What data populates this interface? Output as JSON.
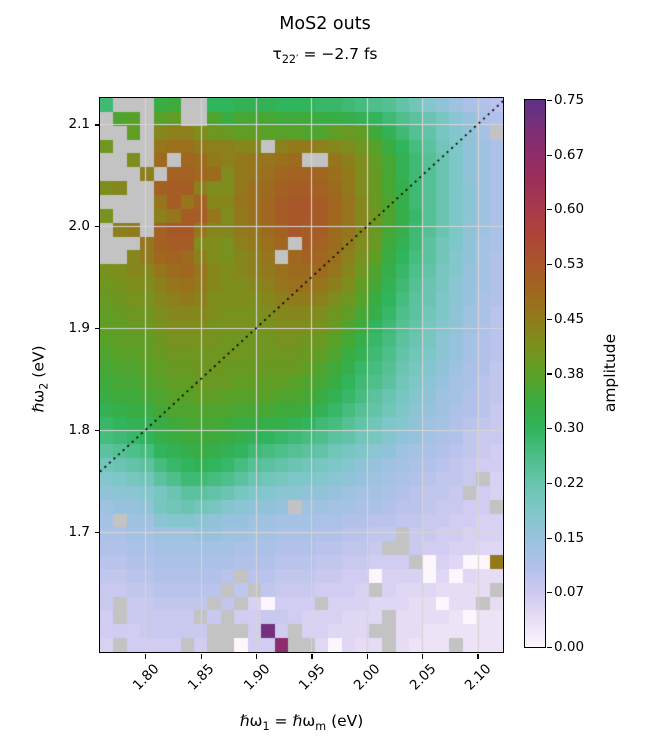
{
  "title": "MoS2 outs",
  "subtitle": {
    "tau": "τ",
    "sub": "22′",
    "rest": " = −2.7 fs"
  },
  "chart_data": {
    "type": "heatmap",
    "title": "MoS2 outs",
    "subtitle": "tau_22' = -2.7 fs",
    "xlabel_parts": {
      "main": "ℏω",
      "sub1": "1",
      "eq": " = ",
      "main2": "ℏω",
      "sub2": "m",
      "unit": " (eV)"
    },
    "ylabel_parts": {
      "main": "ℏω",
      "sub": "2",
      "unit": " (eV)"
    },
    "x_range": [
      1.759,
      2.123
    ],
    "y_range": [
      1.582,
      2.126
    ],
    "x_tick_labels": [
      "1.80",
      "1.85",
      "1.90",
      "1.95",
      "2.00",
      "2.05",
      "2.10"
    ],
    "x_tick_values": [
      1.8,
      1.85,
      1.9,
      1.95,
      2.0,
      2.05,
      2.1
    ],
    "y_tick_labels": [
      "2.1",
      "2.0",
      "1.9",
      "1.8",
      "1.7"
    ],
    "y_tick_values": [
      2.1,
      2.0,
      1.9,
      1.8,
      1.7
    ],
    "grid": true,
    "grid_color": "#d6d6d6",
    "diagonal_line": {
      "style": "dotted",
      "color": "#000000",
      "equation": "hw2 = hw1"
    },
    "nan_color": "#c3c3c3",
    "grid_cols": 30,
    "grid_rows": 40,
    "values_note": "amplitude x100 per cell, row 0 = top (hw2 = 2.12 eV), col 0 = left (hw1 = 1.76 eV), -1 = missing (gray)",
    "values": [
      [
        28,
        -1,
        -1,
        -1,
        33,
        34,
        -1,
        -1,
        30,
        30,
        31,
        31,
        31,
        30,
        30,
        30,
        29,
        29,
        28,
        27,
        26,
        25,
        23,
        21,
        18,
        16,
        14,
        12,
        11,
        10
      ],
      [
        -1,
        36,
        37,
        -1,
        37,
        38,
        -1,
        -1,
        36,
        33,
        35,
        35,
        35,
        34,
        34,
        34,
        33,
        33,
        32,
        31,
        30,
        28,
        26,
        24,
        22,
        20,
        17,
        15,
        12,
        11
      ],
      [
        -1,
        -1,
        38,
        -1,
        43,
        44,
        44,
        42,
        40,
        39,
        38,
        38,
        37,
        37,
        37,
        36,
        36,
        38,
        39,
        38,
        34,
        31,
        28,
        25,
        23,
        20,
        18,
        16,
        13,
        -1
      ],
      [
        40,
        -1,
        -1,
        -1,
        46,
        47,
        47,
        45,
        44,
        44,
        43,
        43,
        -1,
        44,
        45,
        45,
        44,
        43,
        42,
        40,
        37,
        33,
        30,
        27,
        24,
        21,
        19,
        16,
        14,
        12
      ],
      [
        -1,
        -1,
        42,
        -1,
        48,
        -1,
        49,
        48,
        45,
        44,
        45,
        46,
        46,
        47,
        48,
        -1,
        -1,
        46,
        44,
        42,
        38,
        35,
        31,
        28,
        25,
        22,
        19,
        16,
        14,
        12
      ],
      [
        -1,
        -1,
        -1,
        44,
        -1,
        50,
        50,
        49,
        48,
        42,
        45,
        46,
        47,
        49,
        50,
        50,
        49,
        47,
        45,
        42,
        39,
        35,
        31,
        28,
        25,
        22,
        19,
        16,
        14,
        12
      ],
      [
        42,
        43,
        -1,
        -1,
        50,
        51,
        51,
        44,
        42,
        42,
        45,
        47,
        48,
        50,
        51,
        51,
        50,
        48,
        45,
        42,
        39,
        35,
        32,
        28,
        25,
        22,
        19,
        17,
        14,
        12
      ],
      [
        -1,
        -1,
        -1,
        -1,
        46,
        51,
        46,
        50,
        43,
        43,
        46,
        47,
        49,
        51,
        52,
        52,
        51,
        49,
        46,
        43,
        39,
        36,
        32,
        28,
        25,
        22,
        19,
        17,
        14,
        12
      ],
      [
        41,
        -1,
        -1,
        -1,
        44,
        46,
        51,
        51,
        46,
        42,
        45,
        47,
        49,
        51,
        52,
        52,
        51,
        49,
        46,
        43,
        40,
        36,
        32,
        29,
        25,
        22,
        19,
        17,
        14,
        12
      ],
      [
        -1,
        44,
        45,
        -1,
        50,
        52,
        52,
        46,
        43,
        43,
        45,
        46,
        48,
        50,
        52,
        51,
        51,
        48,
        46,
        43,
        39,
        35,
        32,
        28,
        25,
        22,
        19,
        16,
        14,
        12
      ],
      [
        -1,
        -1,
        -1,
        46,
        50,
        51,
        51,
        42,
        42,
        41,
        44,
        45,
        47,
        49,
        -1,
        51,
        50,
        48,
        45,
        42,
        39,
        34,
        31,
        28,
        24,
        21,
        19,
        16,
        13,
        12
      ],
      [
        -1,
        -1,
        43,
        45,
        49,
        50,
        48,
        44,
        42,
        41,
        43,
        44,
        46,
        -1,
        49,
        50,
        49,
        47,
        44,
        41,
        38,
        33,
        30,
        27,
        24,
        21,
        18,
        16,
        13,
        11
      ],
      [
        41,
        42,
        43,
        43,
        46,
        48,
        49,
        46,
        43,
        42,
        43,
        44,
        45,
        47,
        48,
        48,
        48,
        46,
        43,
        40,
        36,
        32,
        29,
        26,
        23,
        20,
        18,
        15,
        13,
        11
      ],
      [
        40,
        41,
        42,
        42,
        44,
        46,
        47,
        45,
        43,
        42,
        42,
        43,
        44,
        46,
        47,
        47,
        46,
        44,
        42,
        38,
        35,
        31,
        28,
        25,
        22,
        20,
        17,
        15,
        13,
        11
      ],
      [
        39,
        40,
        41,
        41,
        43,
        44,
        45,
        44,
        42,
        42,
        42,
        42,
        43,
        44,
        45,
        45,
        44,
        42,
        40,
        37,
        33,
        30,
        27,
        24,
        22,
        19,
        17,
        15,
        12,
        11
      ],
      [
        38,
        39,
        40,
        40,
        42,
        43,
        43,
        43,
        42,
        41,
        41,
        41,
        42,
        43,
        43,
        43,
        42,
        40,
        38,
        35,
        32,
        29,
        26,
        24,
        21,
        19,
        16,
        14,
        12,
        10
      ],
      [
        38,
        38,
        39,
        39,
        41,
        42,
        42,
        42,
        41,
        41,
        41,
        41,
        41,
        42,
        42,
        42,
        41,
        39,
        36,
        34,
        30,
        28,
        25,
        23,
        20,
        18,
        16,
        14,
        12,
        10
      ],
      [
        37,
        38,
        38,
        38,
        40,
        41,
        41,
        41,
        41,
        40,
        40,
        40,
        40,
        41,
        41,
        40,
        39,
        37,
        35,
        32,
        29,
        27,
        24,
        22,
        20,
        17,
        15,
        13,
        11,
        10
      ],
      [
        36,
        37,
        37,
        38,
        39,
        40,
        40,
        40,
        40,
        40,
        40,
        40,
        40,
        40,
        40,
        39,
        38,
        36,
        33,
        31,
        28,
        26,
        23,
        21,
        19,
        17,
        15,
        13,
        11,
        10
      ],
      [
        35,
        36,
        36,
        37,
        38,
        39,
        39,
        40,
        40,
        39,
        39,
        39,
        39,
        39,
        39,
        38,
        36,
        34,
        32,
        29,
        27,
        25,
        22,
        20,
        18,
        16,
        14,
        12,
        11,
        9
      ],
      [
        34,
        35,
        35,
        36,
        37,
        38,
        38,
        39,
        39,
        39,
        38,
        38,
        38,
        38,
        37,
        36,
        35,
        33,
        30,
        28,
        26,
        24,
        21,
        19,
        17,
        15,
        13,
        12,
        10,
        9
      ],
      [
        33,
        34,
        34,
        35,
        36,
        37,
        37,
        38,
        38,
        37,
        37,
        37,
        37,
        36,
        36,
        35,
        33,
        31,
        29,
        27,
        24,
        22,
        20,
        18,
        16,
        14,
        13,
        11,
        10,
        9
      ],
      [
        31,
        32,
        33,
        33,
        35,
        36,
        36,
        36,
        36,
        36,
        35,
        35,
        35,
        34,
        34,
        33,
        31,
        29,
        27,
        25,
        23,
        21,
        19,
        17,
        15,
        14,
        12,
        11,
        10,
        8
      ],
      [
        29,
        30,
        31,
        31,
        33,
        34,
        35,
        35,
        35,
        34,
        33,
        33,
        32,
        32,
        31,
        30,
        28,
        27,
        25,
        23,
        21,
        19,
        18,
        16,
        14,
        13,
        11,
        10,
        9,
        8
      ],
      [
        27,
        28,
        29,
        30,
        32,
        33,
        34,
        34,
        34,
        33,
        32,
        31,
        30,
        29,
        28,
        27,
        26,
        24,
        23,
        21,
        20,
        18,
        16,
        15,
        13,
        12,
        11,
        9,
        8,
        8
      ],
      [
        24,
        25,
        26,
        27,
        30,
        31,
        32,
        33,
        32,
        31,
        30,
        28,
        27,
        26,
        25,
        24,
        23,
        21,
        20,
        19,
        17,
        16,
        14,
        13,
        12,
        11,
        10,
        9,
        8,
        7
      ],
      [
        21,
        22,
        23,
        24,
        27,
        29,
        30,
        31,
        30,
        29,
        27,
        25,
        24,
        23,
        22,
        21,
        20,
        19,
        18,
        16,
        15,
        14,
        13,
        12,
        11,
        10,
        9,
        8,
        7,
        7
      ],
      [
        18,
        19,
        20,
        21,
        24,
        26,
        28,
        28,
        27,
        26,
        24,
        22,
        21,
        20,
        19,
        19,
        18,
        17,
        16,
        15,
        14,
        13,
        12,
        11,
        10,
        9,
        9,
        8,
        -1,
        6
      ],
      [
        16,
        17,
        17,
        18,
        20,
        22,
        24,
        24,
        23,
        22,
        20,
        19,
        18,
        17,
        17,
        16,
        16,
        15,
        14,
        13,
        13,
        12,
        11,
        10,
        9,
        9,
        8,
        -1,
        7,
        6
      ],
      [
        14,
        15,
        15,
        16,
        20,
        21,
        22,
        21,
        20,
        18,
        17,
        16,
        16,
        15,
        -1,
        14,
        14,
        13,
        13,
        12,
        12,
        11,
        10,
        10,
        9,
        8,
        8,
        7,
        7,
        -1
      ],
      [
        13,
        -1,
        14,
        14,
        17,
        18,
        18,
        17,
        16,
        15,
        15,
        14,
        14,
        13,
        13,
        13,
        12,
        12,
        11,
        11,
        10,
        10,
        9,
        9,
        8,
        8,
        7,
        7,
        6,
        6
      ],
      [
        12,
        12,
        13,
        13,
        14,
        14,
        14,
        15,
        15,
        14,
        14,
        13,
        13,
        12,
        12,
        12,
        11,
        11,
        10,
        10,
        9,
        9,
        -1,
        8,
        8,
        7,
        7,
        6,
        6,
        6
      ],
      [
        11,
        11,
        12,
        12,
        13,
        13,
        13,
        13,
        13,
        13,
        12,
        12,
        12,
        11,
        11,
        11,
        10,
        10,
        9,
        9,
        8,
        -1,
        -1,
        8,
        7,
        7,
        6,
        6,
        5,
        5
      ],
      [
        10,
        10,
        11,
        11,
        12,
        12,
        12,
        12,
        12,
        12,
        11,
        11,
        11,
        10,
        10,
        10,
        9,
        9,
        8,
        8,
        7,
        7,
        7,
        -1,
        0,
        6,
        5,
        0,
        0,
        45
      ],
      [
        9,
        9,
        10,
        10,
        11,
        11,
        11,
        11,
        11,
        10,
        -1,
        10,
        10,
        9,
        9,
        9,
        8,
        8,
        7,
        7,
        0,
        6,
        6,
        6,
        0,
        5,
        0,
        5,
        4,
        4
      ],
      [
        8,
        8,
        9,
        9,
        10,
        10,
        10,
        10,
        10,
        -1,
        9,
        -1,
        9,
        8,
        8,
        8,
        7,
        7,
        7,
        6,
        -1,
        6,
        5,
        5,
        5,
        4,
        4,
        4,
        4,
        -1
      ],
      [
        8,
        -1,
        8,
        8,
        9,
        9,
        9,
        9,
        -1,
        9,
        -1,
        6,
        0,
        7,
        7,
        7,
        -1,
        6,
        6,
        6,
        5,
        5,
        5,
        4,
        4,
        0,
        4,
        4,
        -1,
        4
      ],
      [
        7,
        -1,
        8,
        8,
        8,
        8,
        8,
        -1,
        8,
        -1,
        7,
        7,
        8,
        8,
        7,
        6,
        6,
        6,
        5,
        5,
        5,
        -1,
        4,
        4,
        4,
        4,
        3,
        0,
        3,
        3
      ],
      [
        7,
        7,
        7,
        8,
        8,
        8,
        8,
        8,
        -1,
        -1,
        -1,
        7,
        72,
        7,
        -1,
        6,
        6,
        5,
        5,
        5,
        -1,
        -1,
        4,
        4,
        3,
        3,
        3,
        3,
        3,
        3
      ],
      [
        6,
        -1,
        7,
        7,
        7,
        7,
        -1,
        7,
        -1,
        -1,
        0,
        7,
        7,
        68,
        -1,
        -1,
        5,
        0,
        5,
        4,
        4,
        -1,
        4,
        3,
        3,
        3,
        -1,
        3,
        3,
        3
      ]
    ],
    "colorbar": {
      "label": "amplitude",
      "vmin": 0.0,
      "vmax": 0.75,
      "tick_labels": [
        "0.75",
        "0.67",
        "0.60",
        "0.53",
        "0.45",
        "0.38",
        "0.30",
        "0.22",
        "0.15",
        "0.07",
        "0.00"
      ],
      "tick_values": [
        0.75,
        0.675,
        0.6,
        0.525,
        0.45,
        0.375,
        0.3,
        0.225,
        0.15,
        0.075,
        0.0
      ],
      "stops": [
        {
          "a": 0.0,
          "c": "#fdf6fd"
        },
        {
          "a": 0.04,
          "c": "#e6dcf4"
        },
        {
          "a": 0.075,
          "c": "#cdc9f0"
        },
        {
          "a": 0.11,
          "c": "#b1c1ea"
        },
        {
          "a": 0.15,
          "c": "#97c2dd"
        },
        {
          "a": 0.19,
          "c": "#7ec7c8"
        },
        {
          "a": 0.225,
          "c": "#67c4ad"
        },
        {
          "a": 0.26,
          "c": "#4ebe8a"
        },
        {
          "a": 0.3,
          "c": "#30b45c"
        },
        {
          "a": 0.335,
          "c": "#3aab3f"
        },
        {
          "a": 0.375,
          "c": "#5c9f25"
        },
        {
          "a": 0.415,
          "c": "#7b901d"
        },
        {
          "a": 0.45,
          "c": "#927a1c"
        },
        {
          "a": 0.49,
          "c": "#a1661f"
        },
        {
          "a": 0.525,
          "c": "#a9562a"
        },
        {
          "a": 0.56,
          "c": "#ad4636"
        },
        {
          "a": 0.6,
          "c": "#a73a4a"
        },
        {
          "a": 0.64,
          "c": "#9c2f5a"
        },
        {
          "a": 0.675,
          "c": "#8f2c69"
        },
        {
          "a": 0.71,
          "c": "#7b2f78"
        },
        {
          "a": 0.75,
          "c": "#5d3286"
        }
      ]
    }
  }
}
